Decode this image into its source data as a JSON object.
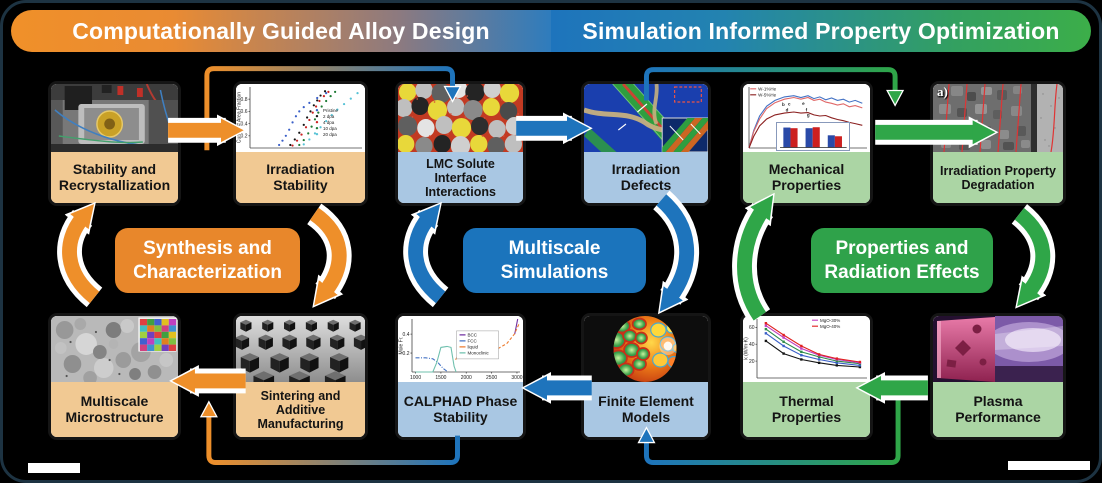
{
  "header": {
    "left_title": "Computationally Guided Alloy Design",
    "right_title": "Simulation Informed Property Optimization"
  },
  "cycle_labels": {
    "synthesis": "Synthesis and Characterization",
    "multiscale": "Multiscale Simulations",
    "properties": "Properties and Radiation Effects"
  },
  "boxes": [
    {
      "label": "Stability and Recrystallization"
    },
    {
      "label": "Irradiation Stability"
    },
    {
      "label": "LMC Solute Interface Interactions"
    },
    {
      "label": "Irradiation Defects"
    },
    {
      "label": "Mechanical Properties"
    },
    {
      "label": "Irradiation Property Degradation"
    },
    {
      "label": "Multiscale Microstructure"
    },
    {
      "label": "Sintering and Additive Manufacturing"
    },
    {
      "label": "CALPHAD Phase Stability"
    },
    {
      "label": "Finite Element Models"
    },
    {
      "label": "Thermal Properties"
    },
    {
      "label": "Plasma Performance"
    }
  ],
  "image_annotations": {
    "ipd_panel_label": "a)"
  },
  "colors": {
    "orange": "#EE8F2A",
    "blue": "#1E74BC",
    "green": "#2FA648",
    "tan_label": "#F1C993",
    "blue_label": "#A9C7E3",
    "green_label": "#ABD5A4"
  },
  "chart_data": {
    "irradiation_stability": {
      "type": "scatter",
      "ylabel": "Cumul. # Area Fraction",
      "yticks": [
        0.2,
        0.4,
        0.6,
        0.8
      ],
      "xlim": [
        0,
        1
      ],
      "ylim": [
        0,
        1
      ],
      "legend": {
        "x": 0.58,
        "y": 0.38
      },
      "series": [
        {
          "name": "Pristine",
          "color": "#3a5fc8",
          "x": [
            0.26,
            0.29,
            0.32,
            0.35,
            0.38,
            0.41,
            0.44,
            0.48,
            0.53,
            0.6,
            0.68
          ],
          "y": [
            0.05,
            0.12,
            0.2,
            0.3,
            0.42,
            0.52,
            0.6,
            0.67,
            0.74,
            0.82,
            0.9
          ]
        },
        {
          "name": "2 dpa",
          "color": "#141414",
          "x": [
            0.36,
            0.4,
            0.44,
            0.48,
            0.51,
            0.54,
            0.57,
            0.6,
            0.63,
            0.67
          ],
          "y": [
            0.05,
            0.14,
            0.25,
            0.38,
            0.5,
            0.6,
            0.7,
            0.78,
            0.86,
            0.93
          ]
        },
        {
          "name": "4 dpa",
          "color": "#cc2222",
          "x": [
            0.38,
            0.42,
            0.46,
            0.5,
            0.53,
            0.56,
            0.59,
            0.62,
            0.66,
            0.7
          ],
          "y": [
            0.04,
            0.12,
            0.22,
            0.34,
            0.46,
            0.58,
            0.68,
            0.77,
            0.85,
            0.92
          ]
        },
        {
          "name": "10 dpa",
          "color": "#1e7a34",
          "x": [
            0.44,
            0.48,
            0.52,
            0.55,
            0.58,
            0.61,
            0.64,
            0.68,
            0.72,
            0.76
          ],
          "y": [
            0.05,
            0.13,
            0.24,
            0.35,
            0.47,
            0.58,
            0.68,
            0.77,
            0.85,
            0.92
          ]
        },
        {
          "name": "20 dpa",
          "color": "#56c2d6",
          "x": [
            0.48,
            0.53,
            0.58,
            0.63,
            0.68,
            0.73,
            0.78,
            0.84,
            0.9,
            0.96
          ],
          "y": [
            0.06,
            0.14,
            0.24,
            0.34,
            0.44,
            0.54,
            0.63,
            0.72,
            0.81,
            0.9
          ]
        }
      ]
    },
    "calphad": {
      "type": "line",
      "ylabel": "Mole Fr.",
      "xticks": [
        1000,
        1500,
        2000,
        2500,
        3000
      ],
      "yticks": [
        0.2,
        0.4
      ],
      "xlim": [
        930,
        3060
      ],
      "ylim": [
        0,
        0.56
      ],
      "legend": {
        "x": 0.44,
        "y": 0.3,
        "box": true,
        "w": 42
      },
      "series": [
        {
          "name": "BCC",
          "color": "#7030a0",
          "x": [
            2955,
            2985,
            3015
          ],
          "y": [
            0.4,
            0.48,
            0.56
          ]
        },
        {
          "name": "FCC",
          "color": "#4472c4",
          "dash": "dashdot",
          "x": [
            1000,
            1200,
            1340,
            1440,
            1540,
            1640
          ],
          "y": [
            0.15,
            0.15,
            0.14,
            0.1,
            0.04,
            0.0
          ]
        },
        {
          "name": "liquid",
          "color": "#ed7d31",
          "dash": "dash",
          "x": [
            1790,
            1820,
            2000,
            2200,
            2400,
            2600,
            2800,
            2950,
            3050
          ],
          "y": [
            0.13,
            0.16,
            0.17,
            0.19,
            0.21,
            0.24,
            0.3,
            0.4,
            0.52
          ]
        },
        {
          "name": "Monoclinic",
          "color": "#6fc0ae",
          "x": [
            1000,
            1340,
            1420,
            1500,
            1620,
            1700,
            1760,
            1800
          ],
          "y": [
            0.0,
            0.0,
            0.1,
            0.26,
            0.27,
            0.26,
            0.06,
            0.0
          ]
        }
      ]
    },
    "mechanical": {
      "type": "line",
      "xlim": [
        0,
        1
      ],
      "ylim": [
        0,
        1.05
      ],
      "legend": {
        "x": 0.01,
        "y": 0.03
      },
      "annotations": [
        {
          "text": "b",
          "x": 0.28,
          "y": 0.72
        },
        {
          "text": "c",
          "x": 0.33,
          "y": 0.73
        },
        {
          "text": "d",
          "x": 0.31,
          "y": 0.63
        },
        {
          "text": "e",
          "x": 0.45,
          "y": 0.74
        },
        {
          "text": "f",
          "x": 0.48,
          "y": 0.63
        },
        {
          "text": "g",
          "x": 0.49,
          "y": 0.54
        }
      ],
      "series": [
        {
          "name": "",
          "color": "#4472c4",
          "x": [
            0,
            0.04,
            0.09,
            0.15,
            0.22,
            0.3,
            0.38,
            0.44,
            0.5,
            0.55,
            0.6,
            0.65,
            0.7,
            0.75,
            0.8,
            0.85,
            0.9,
            0.96
          ],
          "y": [
            0,
            0.3,
            0.55,
            0.72,
            0.82,
            0.88,
            0.9,
            0.87,
            0.9,
            0.85,
            0.88,
            0.83,
            0.86,
            0.82,
            0.84,
            0.79,
            0.82,
            0.77
          ]
        },
        {
          "name": "W-1%He",
          "color": "#e06868",
          "x": [
            0,
            0.04,
            0.09,
            0.15,
            0.22,
            0.3,
            0.38,
            0.44,
            0.5,
            0.55,
            0.6,
            0.65,
            0.7,
            0.75,
            0.8,
            0.85,
            0.9,
            0.96
          ],
          "y": [
            0,
            0.28,
            0.5,
            0.68,
            0.78,
            0.84,
            0.87,
            0.84,
            0.87,
            0.82,
            0.84,
            0.79,
            0.77,
            0.74,
            0.76,
            0.71,
            0.73,
            0.69
          ]
        },
        {
          "name": "W-5%He",
          "color": "#8b2020",
          "x": [
            0,
            0.04,
            0.09,
            0.15,
            0.22,
            0.3,
            0.38,
            0.44,
            0.5,
            0.55,
            0.6,
            0.65,
            0.7,
            0.75,
            0.8,
            0.85,
            0.9,
            0.96
          ],
          "y": [
            0,
            0.2,
            0.38,
            0.5,
            0.57,
            0.6,
            0.62,
            0.6,
            0.61,
            0.57,
            0.55,
            0.56,
            0.52,
            0.49,
            0.47,
            0.44,
            0.42,
            0.39
          ]
        }
      ]
    },
    "mechanical_bars": {
      "type": "bar",
      "ylim": [
        0,
        70
      ],
      "series": [
        {
          "name": "",
          "color": "#2a4aa8",
          "values": [
            62,
            60,
            38
          ]
        },
        {
          "name": "",
          "color": "#cc2020",
          "values": [
            60,
            63,
            35
          ]
        }
      ]
    },
    "thermal": {
      "type": "line",
      "markers": true,
      "ylabel": "k (W/m·K)",
      "yticks": [
        20,
        40,
        60
      ],
      "xlim": [
        0,
        6.2
      ],
      "ylim": [
        0,
        70
      ],
      "legend": {
        "x": 0.5,
        "y": 0.02
      },
      "series": [
        {
          "name": "",
          "color": "#141414",
          "x": [
            0.5,
            1.5,
            2.5,
            3.5,
            4.5,
            5.8
          ],
          "y": [
            44,
            29,
            22,
            18,
            15,
            13
          ]
        },
        {
          "name": "",
          "color": "#3a5fc8",
          "x": [
            0.5,
            1.5,
            2.5,
            3.5,
            4.5,
            5.8
          ],
          "y": [
            53,
            38,
            27,
            22,
            18,
            15
          ]
        },
        {
          "name": "",
          "color": "#2e8b4a",
          "x": [
            0.5,
            1.5,
            2.5,
            3.5,
            4.5,
            5.8
          ],
          "y": [
            58,
            43,
            31,
            25,
            20,
            17
          ]
        },
        {
          "name": "MgO-30%",
          "color": "#c040c0",
          "x": [
            0.5,
            1.5,
            2.5,
            3.5,
            4.5,
            5.8
          ],
          "y": [
            62,
            48,
            35,
            27,
            22,
            18
          ]
        },
        {
          "name": "MgO-40%",
          "color": "#e02020",
          "x": [
            0.5,
            1.5,
            2.5,
            3.5,
            4.5,
            5.8
          ],
          "y": [
            65,
            51,
            38,
            28,
            23,
            19
          ]
        }
      ]
    }
  }
}
